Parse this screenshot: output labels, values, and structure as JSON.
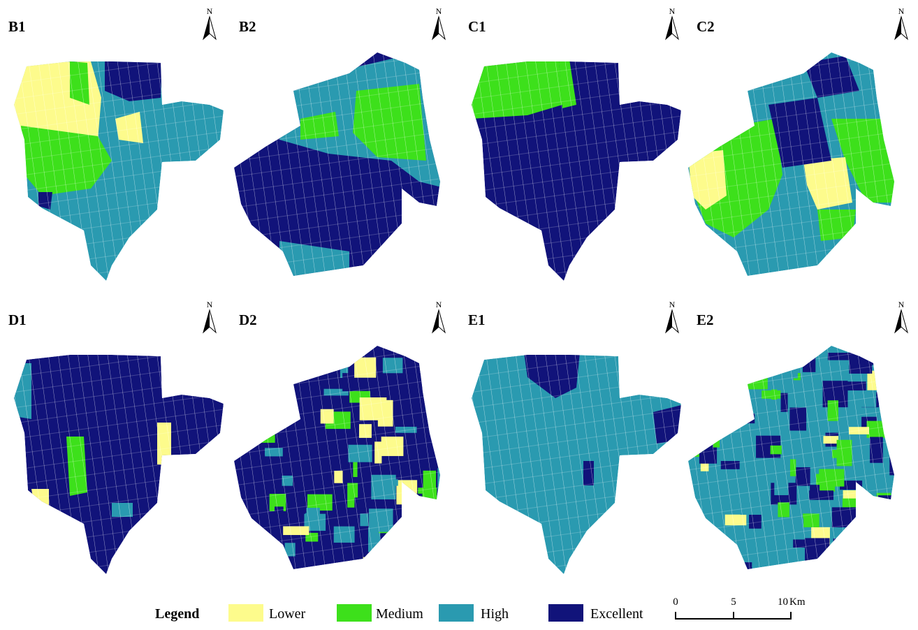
{
  "panels": [
    {
      "label": "B1"
    },
    {
      "label": "B2"
    },
    {
      "label": "C1"
    },
    {
      "label": "C2"
    },
    {
      "label": "D1"
    },
    {
      "label": "D2"
    },
    {
      "label": "E1"
    },
    {
      "label": "E2"
    }
  ],
  "north": "N",
  "legend": {
    "title": "Legend",
    "items": [
      {
        "label": "Lower",
        "color": "#fdfb8c"
      },
      {
        "label": "Medium",
        "color": "#3de01b"
      },
      {
        "label": "High",
        "color": "#2a9ab0"
      },
      {
        "label": "Excellent",
        "color": "#11137a"
      }
    ]
  },
  "scale_bar": {
    "ticks": [
      0,
      5,
      10
    ],
    "unit": "Km"
  }
}
